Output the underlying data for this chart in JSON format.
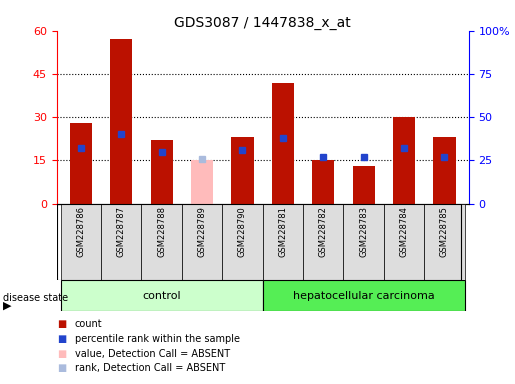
{
  "title": "GDS3087 / 1447838_x_at",
  "samples": [
    "GSM228786",
    "GSM228787",
    "GSM228788",
    "GSM228789",
    "GSM228790",
    "GSM228781",
    "GSM228782",
    "GSM228783",
    "GSM228784",
    "GSM228785"
  ],
  "count_values": [
    28,
    57,
    22,
    null,
    23,
    42,
    15,
    13,
    30,
    23
  ],
  "count_absent": [
    null,
    null,
    null,
    15,
    null,
    null,
    null,
    null,
    null,
    null
  ],
  "percentile_values": [
    32,
    40,
    30,
    null,
    31,
    38,
    27,
    27,
    32,
    27
  ],
  "percentile_absent": [
    null,
    null,
    null,
    26,
    null,
    null,
    null,
    null,
    null,
    null
  ],
  "control_group": [
    0,
    1,
    2,
    3,
    4
  ],
  "cancer_group": [
    5,
    6,
    7,
    8,
    9
  ],
  "group_labels": [
    "control",
    "hepatocellular carcinoma"
  ],
  "left_ylim": [
    0,
    60
  ],
  "right_ylim": [
    0,
    100
  ],
  "left_yticks": [
    0,
    15,
    30,
    45,
    60
  ],
  "right_yticks": [
    0,
    25,
    50,
    75,
    100
  ],
  "right_yticklabels": [
    "0",
    "25",
    "50",
    "75",
    "100%"
  ],
  "hlines": [
    15,
    30,
    45
  ],
  "bar_color": "#bb1100",
  "bar_absent_color": "#ffbbbb",
  "dot_color": "#2244cc",
  "dot_absent_color": "#aabbdd",
  "control_bg": "#ccffcc",
  "cancer_bg": "#55ee55",
  "tick_bg": "#dddddd",
  "legend_items": [
    {
      "color": "#bb1100",
      "label": "count"
    },
    {
      "color": "#2244cc",
      "label": "percentile rank within the sample"
    },
    {
      "color": "#ffbbbb",
      "label": "value, Detection Call = ABSENT"
    },
    {
      "color": "#aabbdd",
      "label": "rank, Detection Call = ABSENT"
    }
  ]
}
